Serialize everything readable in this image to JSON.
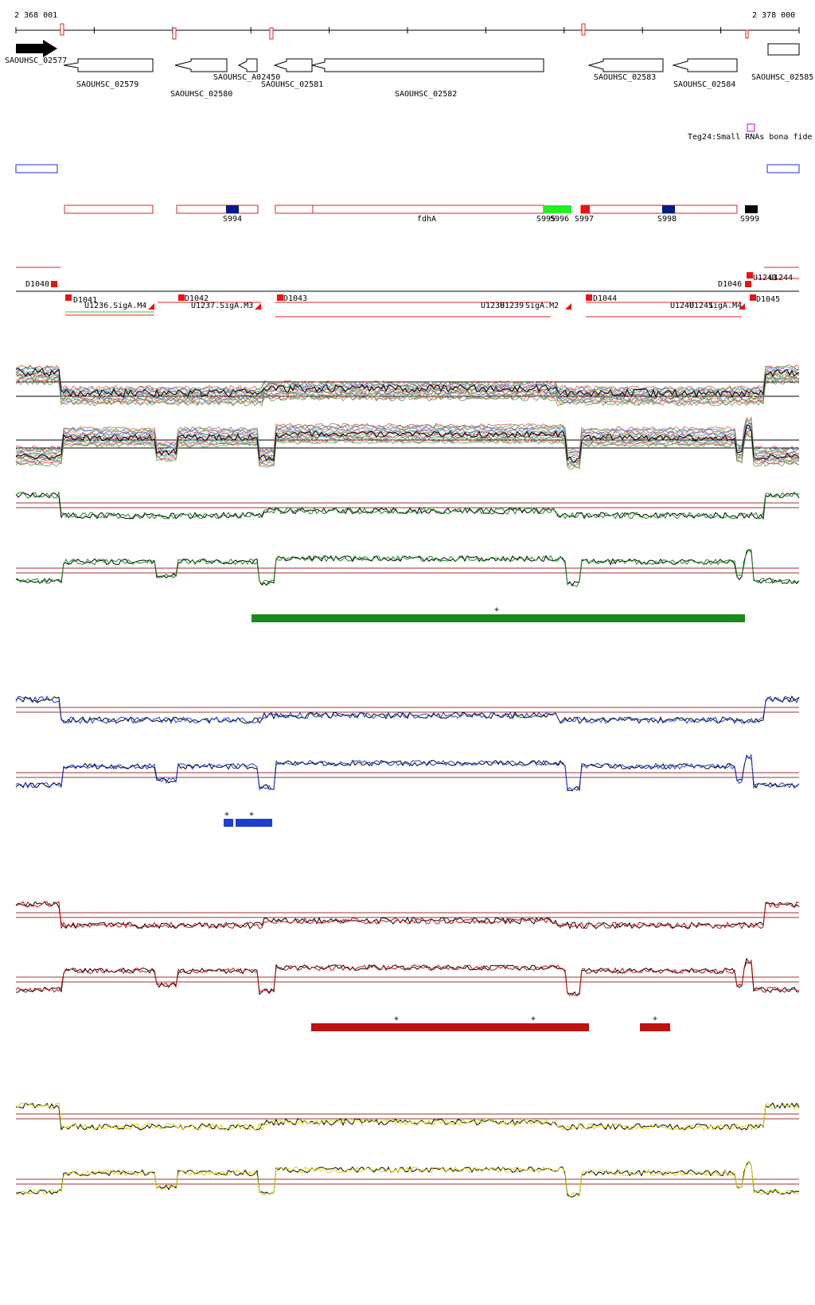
{
  "coordinates": {
    "start": "2 368 001",
    "end": "2 378 000"
  },
  "genes": [
    {
      "id": "SAOUHSC_02577",
      "strand": "+",
      "filled": true
    },
    {
      "id": "SAOUHSC_02579",
      "strand": "-"
    },
    {
      "id": "SAOUHSC_02580",
      "strand": "-"
    },
    {
      "id": "SAOUHSC_A02450",
      "strand": "-"
    },
    {
      "id": "SAOUHSC_02581",
      "strand": "-"
    },
    {
      "id": "SAOUHSC_02582",
      "strand": "-"
    },
    {
      "id": "SAOUHSC_02583",
      "strand": "-"
    },
    {
      "id": "SAOUHSC_02584",
      "strand": "-"
    },
    {
      "id": "SAOUHSC_02585",
      "strand": "+"
    }
  ],
  "small_rna": {
    "label": "Teg24:Small RNAs bona fide",
    "color": "#cc00cc"
  },
  "segments": {
    "gene_name": "fdhA",
    "labels": [
      "S994",
      "S995",
      "S996",
      "S997",
      "S998",
      "S999"
    ]
  },
  "transcription_units": {
    "down": [
      "D1040",
      "D1041",
      "D1042",
      "D1043",
      "D1044",
      "D1045",
      "D1046"
    ],
    "up": [
      "U1236.SigA.M4",
      "U1237.SigA.M3",
      "U1238",
      "U1239",
      "SigA.M2",
      "U1240",
      "U1241",
      "U1242",
      "SigA.M4",
      "U1243",
      "U1244",
      "SigA"
    ]
  },
  "tracks": {
    "all_conditions": {
      "description": "multi-condition expression profiles"
    },
    "green": {
      "color": "#1a8a1a",
      "marker": "+"
    },
    "blue": {
      "color": "#1c3fd0",
      "marker": "+"
    },
    "red": {
      "color": "#c01010",
      "marker": "+"
    },
    "yellow": {
      "color": "#d8d800"
    }
  },
  "colors": {
    "feature_outline": "#e02020",
    "feature_fill_red": "#ee1111",
    "feature_fill_green": "#22ee22",
    "feature_fill_navy": "#001a88",
    "feature_fill_black": "#000000",
    "threshold_line": "#a03030",
    "blue_box": "#2030c0"
  }
}
